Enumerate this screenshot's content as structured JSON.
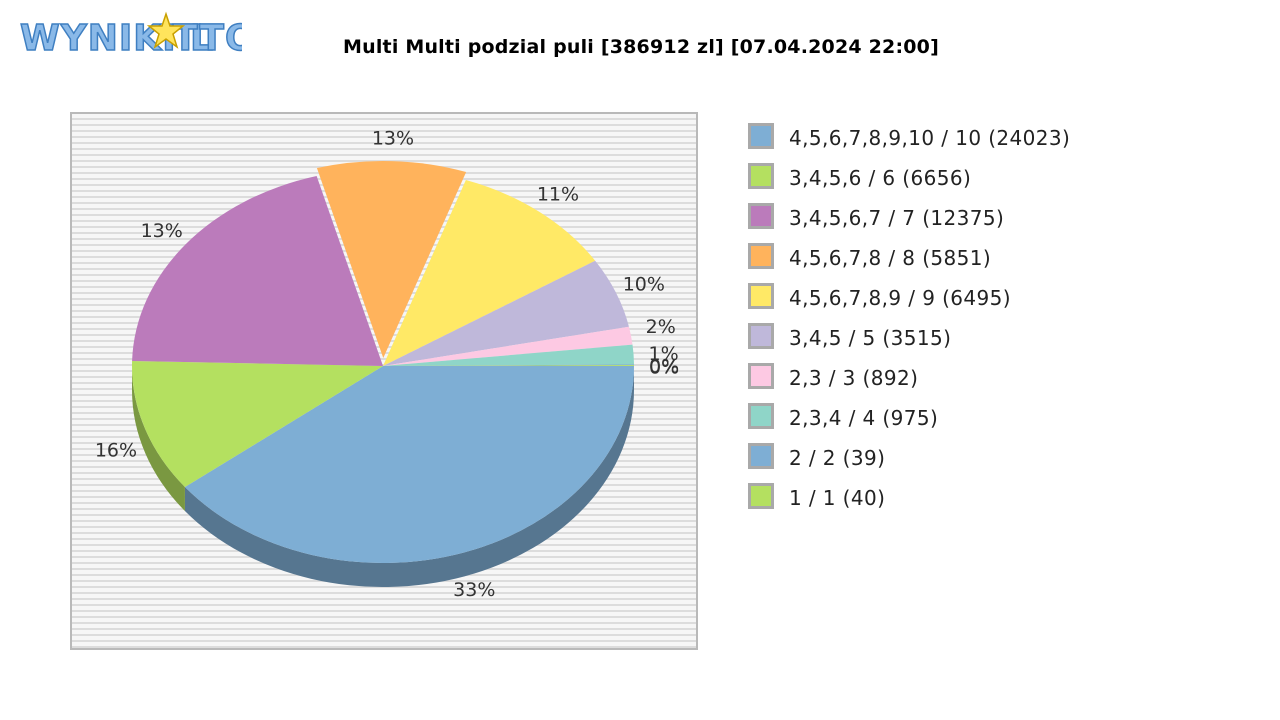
{
  "logo": {
    "text": "WYNIKI LOTTO"
  },
  "chart_data": {
    "type": "pie",
    "title": "Multi Multi podzial puli [386912 zl] [07.04.2024 22:00]",
    "slices": [
      {
        "label": "4,5,6,7,8,9,10 / 10 (24023)",
        "value": 24023,
        "pct_label": "33%",
        "color": "#7eaed4"
      },
      {
        "label": "3,4,5,6 / 6 (6656)",
        "value": 6656,
        "pct_label": "16%",
        "color": "#b4e060"
      },
      {
        "label": "3,4,5,6,7 / 7 (12375)",
        "value": 12375,
        "pct_label": "13%",
        "color": "#bb7bbb"
      },
      {
        "label": "4,5,6,7,8 / 8 (5851)",
        "value": 5851,
        "pct_label": "13%",
        "color": "#ffb35c"
      },
      {
        "label": "4,5,6,7,8,9 / 9 (6495)",
        "value": 6495,
        "pct_label": "11%",
        "color": "#ffe966"
      },
      {
        "label": "3,4,5 / 5 (3515)",
        "value": 3515,
        "pct_label": "10%",
        "color": "#bfb8da"
      },
      {
        "label": "2,3 / 3 (892)",
        "value": 892,
        "pct_label": "2%",
        "color": "#fdc9e3"
      },
      {
        "label": "2,3,4 / 4 (975)",
        "value": 975,
        "pct_label": "1%",
        "color": "#8fd5c8"
      },
      {
        "label": "2 / 2 (39)",
        "value": 39,
        "pct_label": "0%",
        "color": "#7eaed4"
      },
      {
        "label": "1 / 1 (40)",
        "value": 40,
        "pct_label": "0%",
        "color": "#b4e060"
      }
    ],
    "legend_position": "right"
  }
}
